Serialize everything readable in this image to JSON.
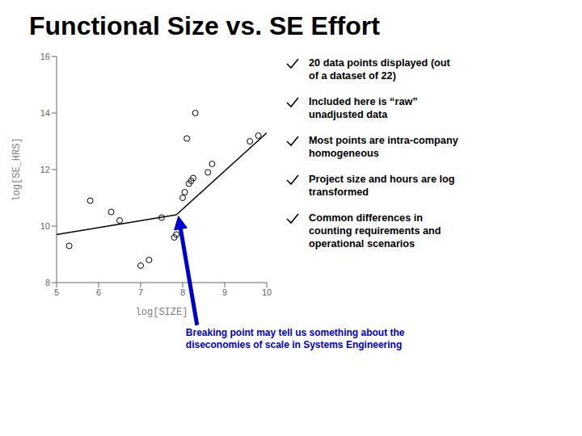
{
  "chart_data": {
    "type": "scatter",
    "title": "Functional Size vs. SE Effort",
    "xlabel": "log[SIZE]",
    "ylabel": "log[SE_HRS]",
    "xlim": [
      5,
      10
    ],
    "ylim": [
      8,
      16
    ],
    "xticks": [
      5,
      6,
      7,
      8,
      9,
      10
    ],
    "yticks": [
      8,
      10,
      12,
      14,
      16
    ],
    "grid": false,
    "series": [
      {
        "type": "line",
        "color": "black",
        "x": [
          5.0,
          7.85
        ],
        "y": [
          9.7,
          10.4
        ]
      },
      {
        "type": "line",
        "color": "black",
        "x": [
          7.85,
          10.0
        ],
        "y": [
          10.4,
          13.3
        ]
      },
      {
        "type": "scatter",
        "marker": "circle_open",
        "color": "black",
        "x": [
          5.3,
          5.8,
          6.3,
          6.5,
          7.0,
          7.2,
          7.5,
          7.8,
          7.85,
          8.0,
          8.05,
          8.1,
          8.15,
          8.2,
          8.25,
          8.3,
          8.6,
          8.7,
          9.6,
          9.8
        ],
        "y": [
          9.3,
          10.9,
          10.5,
          10.2,
          8.6,
          8.8,
          10.3,
          9.6,
          9.7,
          11.0,
          11.2,
          13.1,
          11.5,
          11.6,
          11.7,
          14.0,
          11.9,
          12.2,
          13.0,
          13.2
        ]
      }
    ],
    "annotations": [
      {
        "text": "Breaking point may tell us something about the\ndiseconomies of scale in Systems Engineering",
        "x": 7.9,
        "y": 10.35,
        "color": "#0000CC"
      }
    ],
    "notes": [
      "20 data points displayed (out\nof a dataset of 22)",
      "Included here is “raw”\nunadjusted data",
      "Most points are intra-company\nhomogeneous",
      "Project size and hours are log\ntransformed",
      "Common differences in\ncounting requirements and\noperational scenarios"
    ]
  }
}
